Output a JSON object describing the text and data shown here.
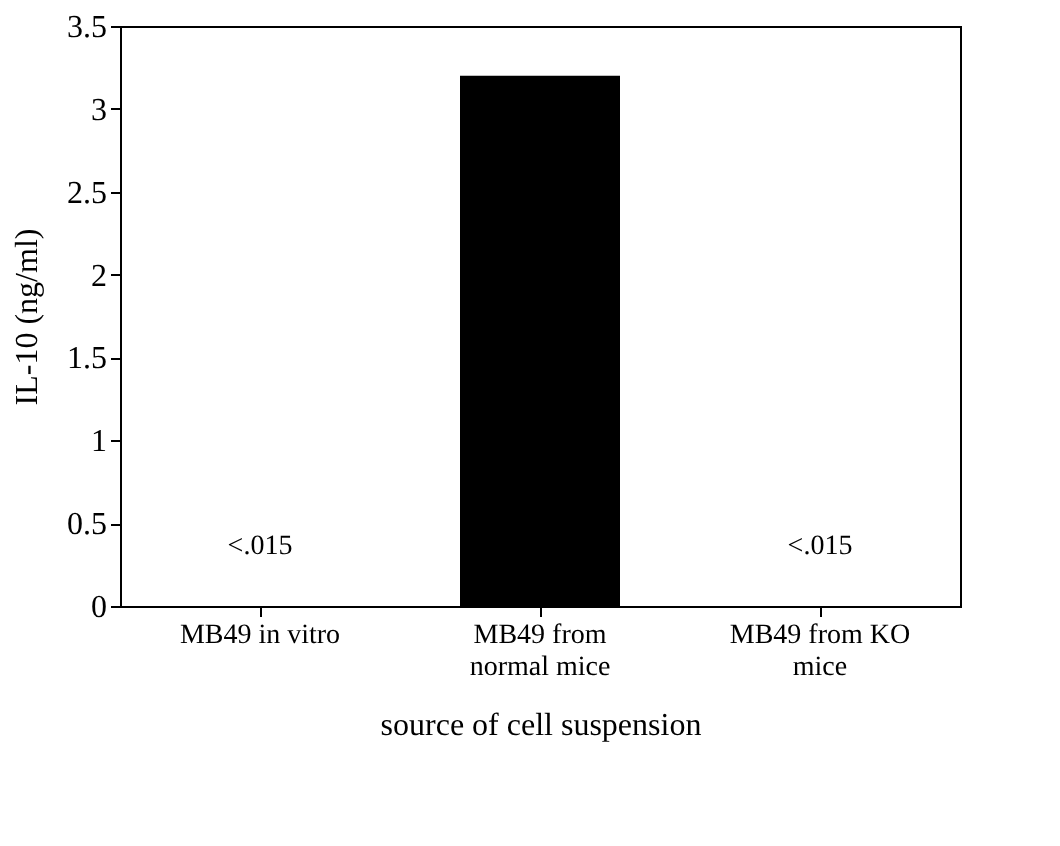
{
  "chart_data": {
    "type": "bar",
    "xlabel": "source of cell suspension",
    "ylabel": "IL-10 (ng/ml)",
    "categories": [
      "MB49 in vitro",
      "MB49 from normal mice",
      "MB49 from KO mice"
    ],
    "values": [
      null,
      3.2,
      null
    ],
    "color": "#000000",
    "value_labels": [
      "<.015",
      null,
      "<.015"
    ],
    "ylim": [
      0,
      3.5
    ],
    "yticks": [
      0,
      0.5,
      1,
      1.5,
      2,
      2.5,
      3,
      3.5
    ],
    "grid": false
  }
}
